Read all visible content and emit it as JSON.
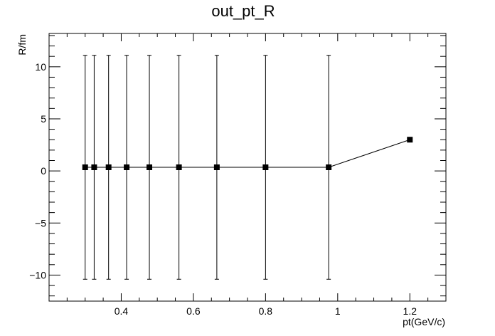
{
  "chart_data": {
    "type": "scatter",
    "title": "out_pt_R",
    "xlabel": "pt(GeV/c)",
    "ylabel": "R/fm",
    "xlim": [
      0.2,
      1.3
    ],
    "ylim": [
      -12.5,
      13.2
    ],
    "x_major_ticks": [
      0.4,
      0.6,
      0.8,
      1,
      1.2
    ],
    "x_tick_labels": [
      "0.4",
      "0.6",
      "0.8",
      "1",
      "1.2"
    ],
    "y_major_ticks": [
      -10,
      -5,
      0,
      5,
      10
    ],
    "y_tick_labels": [
      "−10",
      "−5",
      "0",
      "5",
      "10"
    ],
    "grid": false,
    "series": [
      {
        "points": [
          {
            "x": 0.3,
            "y": 0.35,
            "err_low": -10.4,
            "err_high": 11.1
          },
          {
            "x": 0.325,
            "y": 0.35,
            "err_low": -10.4,
            "err_high": 11.1
          },
          {
            "x": 0.365,
            "y": 0.35,
            "err_low": -10.4,
            "err_high": 11.1
          },
          {
            "x": 0.415,
            "y": 0.35,
            "err_low": -10.4,
            "err_high": 11.1
          },
          {
            "x": 0.478,
            "y": 0.35,
            "err_low": -10.4,
            "err_high": 11.1
          },
          {
            "x": 0.56,
            "y": 0.35,
            "err_low": -10.4,
            "err_high": 11.1
          },
          {
            "x": 0.665,
            "y": 0.35,
            "err_low": -10.4,
            "err_high": 11.1
          },
          {
            "x": 0.8,
            "y": 0.35,
            "err_low": -10.4,
            "err_high": 11.1
          },
          {
            "x": 0.975,
            "y": 0.35,
            "err_low": -10.4,
            "err_high": 11.1
          },
          {
            "x": 1.2,
            "y": 3.0,
            "err_low": 3.0,
            "err_high": 3.0
          }
        ]
      }
    ]
  }
}
